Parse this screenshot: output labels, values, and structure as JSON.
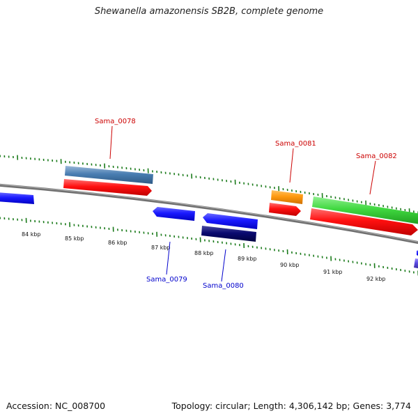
{
  "title": "Shewanella amazonensis SB2B, complete genome",
  "footer": {
    "accession": "Accession: NC_008700",
    "summary": "Topology: circular; Length: 4,306,142 bp; Genes: 3,774"
  },
  "colors": {
    "backbone": "#808080",
    "tick": "#1a7a1a",
    "forward_label": "#cc0000",
    "reverse_label": "#0000cc"
  },
  "scale_labels": [
    "84 kbp",
    "85 kbp",
    "86 kbp",
    "87 kbp",
    "88 kbp",
    "89 kbp",
    "90 kbp",
    "91 kbp",
    "92 kbp"
  ],
  "genes": [
    {
      "name": "Sama_0078",
      "strand": "forward",
      "color": "#cc0000"
    },
    {
      "name": "Sama_0079",
      "strand": "reverse",
      "color": "#0000cc"
    },
    {
      "name": "Sama_0080",
      "strand": "reverse",
      "color": "#0000cc"
    },
    {
      "name": "Sama_0081",
      "strand": "forward",
      "color": "#cc0000"
    },
    {
      "name": "Sama_0082",
      "strand": "forward",
      "color": "#cc0000"
    }
  ]
}
